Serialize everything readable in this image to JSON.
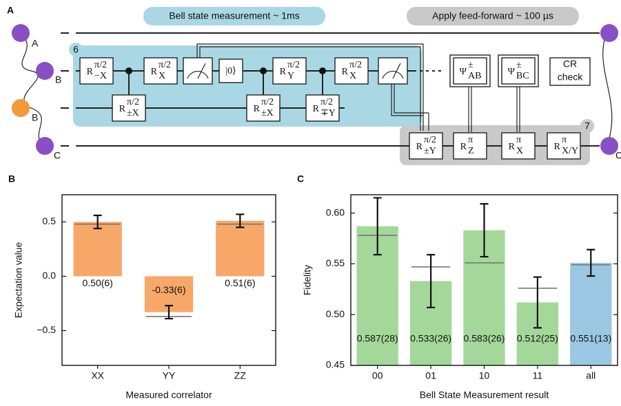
{
  "diagram": {
    "panel_label": "A",
    "bsm_label": "Bell state measurement ~ 1ms",
    "ff_label": "Apply feed-forward ~ 100 µs",
    "box_numbers": [
      "6",
      "7"
    ],
    "qubits": [
      "A",
      "B",
      "B",
      "C",
      "C"
    ],
    "gates": [
      {
        "base": "R",
        "sup": "π/2",
        "sub": "−X"
      },
      {
        "base": "R",
        "sup": "π/2",
        "sub": "X"
      },
      {
        "base": "R",
        "sup": "π/2",
        "sub": "Y"
      },
      {
        "base": "R",
        "sup": "π/2",
        "sub": "X"
      },
      {
        "base": "R",
        "sup": "π/2",
        "sub": "±X"
      },
      {
        "base": "R",
        "sup": "π/2",
        "sub": "±X"
      },
      {
        "base": "R",
        "sup": "π/2",
        "sub": "∓Y"
      },
      {
        "base": "R",
        "sup": "π/2",
        "sub": "±Y"
      },
      {
        "base": "R",
        "sup": "π",
        "sub": "Z"
      },
      {
        "base": "R",
        "sup": "π",
        "sub": "X"
      },
      {
        "base": "R",
        "sup": "π",
        "sub": "X/Y"
      }
    ],
    "ket": "|0⟩",
    "bell_gates": [
      {
        "base": "Ψ",
        "sup": "±",
        "sub": "AB"
      },
      {
        "base": "Ψ",
        "sup": "±",
        "sub": "BC"
      }
    ],
    "check": [
      "CR",
      "check"
    ]
  },
  "chart_data": [
    {
      "type": "bar",
      "panel_label": "B",
      "ylabel": "Expectation value",
      "xlabel": "Measured correlator",
      "categories": [
        "XX",
        "YY",
        "ZZ"
      ],
      "values": [
        0.5,
        -0.33,
        0.51
      ],
      "errors": [
        0.06,
        0.06,
        0.06
      ],
      "value_labels": [
        "0.50(6)",
        "-0.33(6)",
        "0.51(6)"
      ],
      "reference": [
        0.48,
        -0.37,
        0.48
      ],
      "colors": [
        "#f7a868",
        "#f7a868",
        "#f7a868"
      ],
      "ylim": [
        -0.82,
        0.75
      ],
      "yticks": [
        {
          "value": -0.5,
          "label": "−0.5"
        },
        {
          "value": 0.0,
          "label": "0.0"
        },
        0.5
      ]
    },
    {
      "type": "bar",
      "panel_label": "C",
      "ylabel": "Fidelity",
      "xlabel": "Bell State Measurement result",
      "categories": [
        "00",
        "01",
        "10",
        "11",
        "all"
      ],
      "values": [
        0.587,
        0.533,
        0.583,
        0.512,
        0.551
      ],
      "errors": [
        0.028,
        0.026,
        0.026,
        0.025,
        0.013
      ],
      "value_labels": [
        "0.587(28)",
        "0.533(26)",
        "0.583(26)",
        "0.512(25)",
        "0.551(13)"
      ],
      "reference": [
        0.578,
        0.547,
        0.551,
        0.526,
        0.549
      ],
      "colors": [
        "#a3d89a",
        "#a3d89a",
        "#a3d89a",
        "#a3d89a",
        "#9cc7e2"
      ],
      "ylim": [
        0.45,
        0.618
      ],
      "yticks": [
        0.45,
        {
          "value": 0.5,
          "label": "0.50"
        },
        0.55,
        {
          "value": 0.6,
          "label": "0.60"
        }
      ]
    }
  ]
}
